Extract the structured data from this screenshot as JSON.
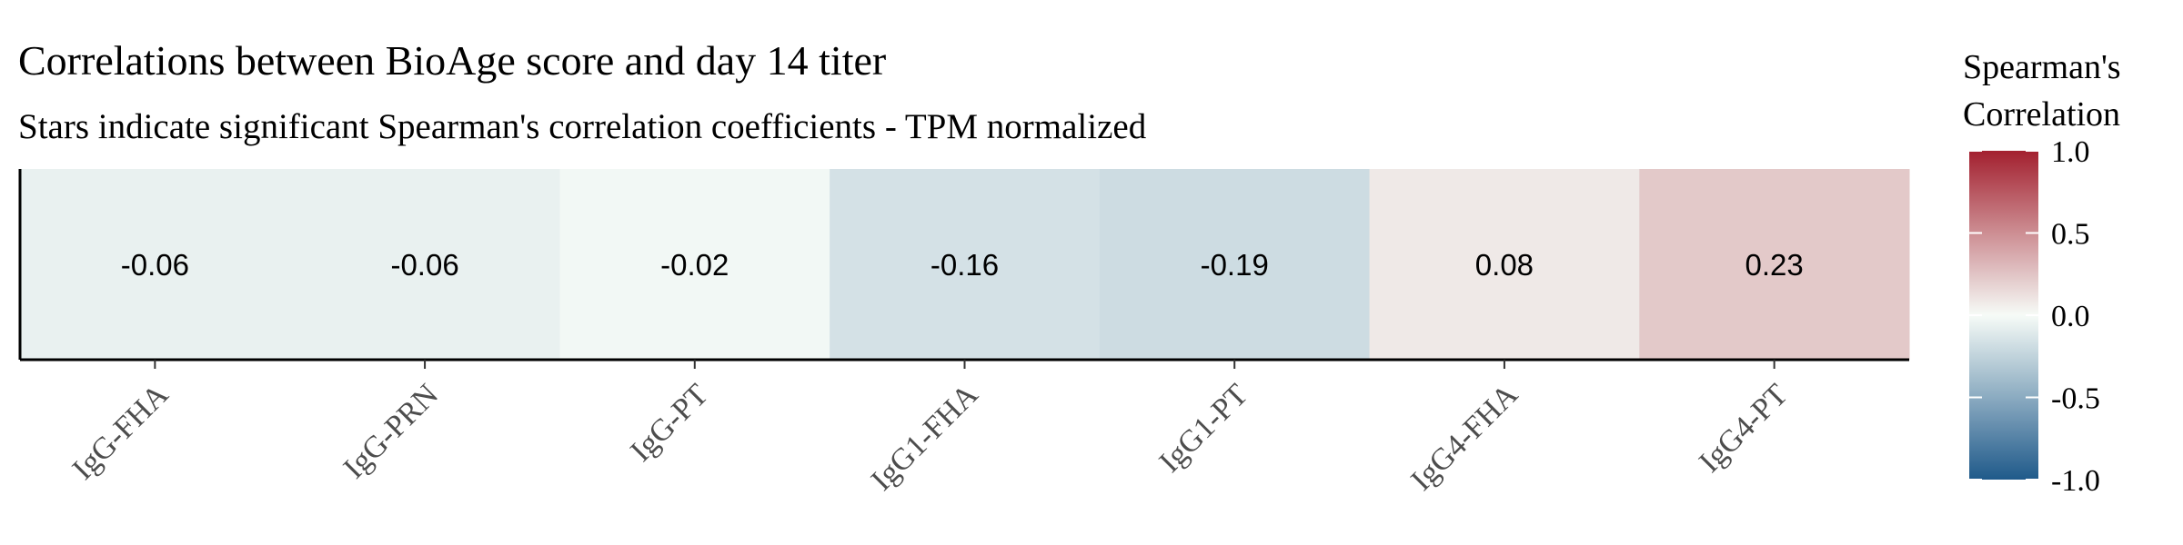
{
  "chart_data": {
    "type": "heatmap",
    "title": "Correlations between BioAge score and day 14 titer",
    "subtitle": "Stars indicate significant Spearman's correlation coefficients - TPM normalized",
    "categories": [
      "IgG-FHA",
      "IgG-PRN",
      "IgG-PT",
      "IgG1-FHA",
      "IgG1-PT",
      "IgG4-FHA",
      "IgG4-PT"
    ],
    "values": [
      -0.06,
      -0.06,
      -0.02,
      -0.16,
      -0.19,
      0.08,
      0.23
    ],
    "value_labels": [
      "-0.06",
      "-0.06",
      "-0.02",
      "-0.16",
      "-0.19",
      "0.08",
      "0.23"
    ],
    "legend": {
      "title_line1": "Spearman's",
      "title_line2": "Correlation",
      "placement": "right",
      "limits": [
        -1.0,
        1.0
      ],
      "ticks": [
        1.0,
        0.5,
        0.0,
        -0.5,
        -1.0
      ],
      "tick_labels": [
        "1.0",
        "0.5",
        "0.0",
        "-0.5",
        "-1.0"
      ],
      "colors": {
        "low": "#1f5a8a",
        "mid": "#f6fbf7",
        "high": "#a3202f"
      }
    },
    "grid": false
  }
}
